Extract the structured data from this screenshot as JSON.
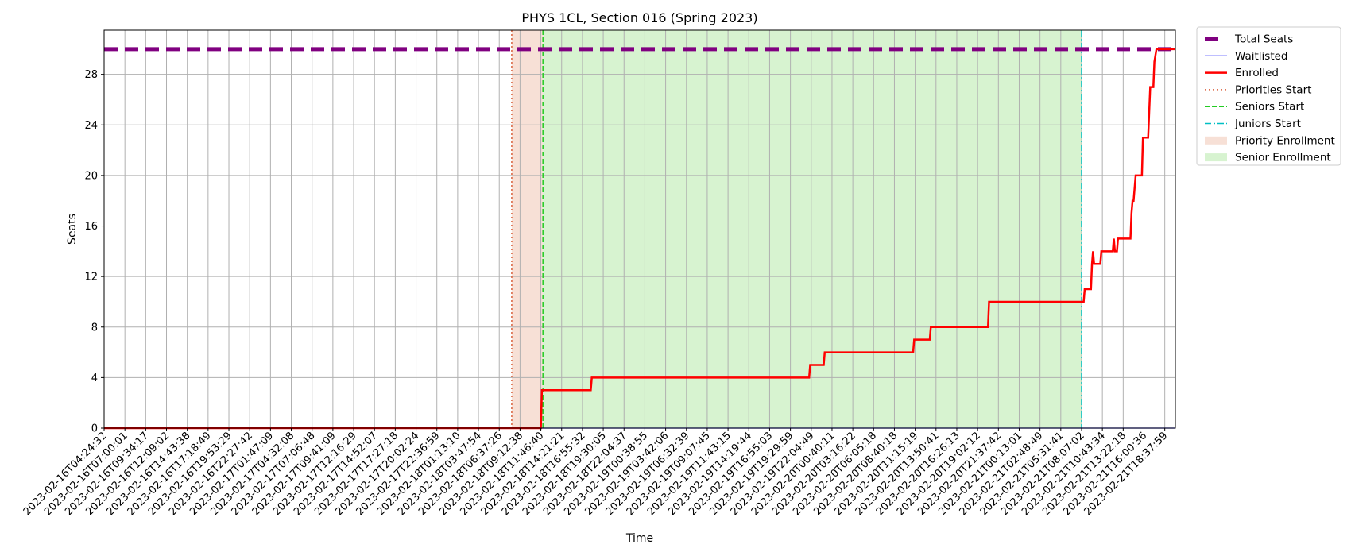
{
  "chart_data": {
    "type": "line",
    "title": "PHYS 1CL, Section 016 (Spring 2023)",
    "xlabel": "Time",
    "ylabel": "Seats",
    "ylim": [
      0,
      31.5
    ],
    "yticks": [
      0,
      4,
      8,
      12,
      16,
      20,
      24,
      28
    ],
    "grid": true,
    "legend_position": "outside-top-right",
    "x_ticks": [
      "2023-02-16T04:24:32",
      "2023-02-16T07:00:01",
      "2023-02-16T09:34:17",
      "2023-02-16T12:09:02",
      "2023-02-16T14:43:38",
      "2023-02-16T17:18:49",
      "2023-02-16T19:53:29",
      "2023-02-16T22:27:42",
      "2023-02-17T01:47:09",
      "2023-02-17T04:32:08",
      "2023-02-17T07:06:48",
      "2023-02-17T09:41:09",
      "2023-02-17T12:16:29",
      "2023-02-17T14:52:07",
      "2023-02-17T17:27:18",
      "2023-02-17T20:02:24",
      "2023-02-17T22:36:59",
      "2023-02-18T01:13:10",
      "2023-02-18T03:47:54",
      "2023-02-18T06:37:26",
      "2023-02-18T09:12:38",
      "2023-02-18T11:46:40",
      "2023-02-18T14:21:21",
      "2023-02-18T16:55:32",
      "2023-02-18T19:30:05",
      "2023-02-18T22:04:37",
      "2023-02-19T00:38:55",
      "2023-02-19T03:42:06",
      "2023-02-19T06:32:39",
      "2023-02-19T09:07:45",
      "2023-02-19T11:43:15",
      "2023-02-19T14:19:44",
      "2023-02-19T16:55:03",
      "2023-02-19T19:29:59",
      "2023-02-19T22:04:49",
      "2023-02-20T00:40:11",
      "2023-02-20T03:16:22",
      "2023-02-20T06:05:18",
      "2023-02-20T08:40:18",
      "2023-02-20T11:15:19",
      "2023-02-20T13:50:41",
      "2023-02-20T16:26:13",
      "2023-02-20T19:02:12",
      "2023-02-20T21:37:42",
      "2023-02-21T00:13:01",
      "2023-02-21T02:48:49",
      "2023-02-21T05:31:41",
      "2023-02-21T08:07:02",
      "2023-02-21T10:43:34",
      "2023-02-21T13:22:18",
      "2023-02-21T16:00:36",
      "2023-02-21T18:37:59"
    ],
    "x_index_range": [
      0,
      51.5
    ],
    "series": [
      {
        "name": "Total Seats",
        "color": "#800080",
        "style": "dashed-thick",
        "points": [
          [
            0,
            30
          ],
          [
            51.5,
            30
          ]
        ]
      },
      {
        "name": "Waitlisted",
        "color": "#0000ff",
        "style": "solid-thin",
        "points": [
          [
            0,
            0
          ],
          [
            51.5,
            0
          ]
        ]
      },
      {
        "name": "Enrolled",
        "color": "#ff0000",
        "style": "solid",
        "points": [
          [
            0,
            0
          ],
          [
            21.0,
            0
          ],
          [
            21.05,
            3
          ],
          [
            23.4,
            3
          ],
          [
            23.45,
            4
          ],
          [
            33.9,
            4
          ],
          [
            33.95,
            5
          ],
          [
            34.6,
            5
          ],
          [
            34.65,
            6
          ],
          [
            38.9,
            6
          ],
          [
            38.95,
            7
          ],
          [
            39.7,
            7
          ],
          [
            39.75,
            8
          ],
          [
            42.5,
            8
          ],
          [
            42.55,
            10
          ],
          [
            47.1,
            10
          ],
          [
            47.15,
            11
          ],
          [
            47.45,
            11
          ],
          [
            47.5,
            13
          ],
          [
            47.55,
            14
          ],
          [
            47.6,
            13
          ],
          [
            47.9,
            13
          ],
          [
            47.95,
            14
          ],
          [
            48.5,
            14
          ],
          [
            48.55,
            15
          ],
          [
            48.6,
            14
          ],
          [
            48.7,
            14
          ],
          [
            48.75,
            15
          ],
          [
            49.35,
            15
          ],
          [
            49.4,
            17
          ],
          [
            49.45,
            18
          ],
          [
            49.5,
            18
          ],
          [
            49.55,
            19
          ],
          [
            49.6,
            20
          ],
          [
            49.9,
            20
          ],
          [
            49.95,
            23
          ],
          [
            50.2,
            23
          ],
          [
            50.25,
            25
          ],
          [
            50.3,
            27
          ],
          [
            50.45,
            27
          ],
          [
            50.5,
            29
          ],
          [
            50.6,
            30
          ],
          [
            51.5,
            30
          ]
        ]
      }
    ],
    "vertical_lines": [
      {
        "name": "Priorities Start",
        "x": 19.6,
        "color": "#d95f3b",
        "style": "dotted"
      },
      {
        "name": "Seniors Start",
        "x": 21.1,
        "color": "#22cc22",
        "style": "dashed"
      },
      {
        "name": "Juniors Start",
        "x": 47.0,
        "color": "#00bfc4",
        "style": "dashdot"
      }
    ],
    "shaded_regions": [
      {
        "name": "Priority Enrollment",
        "x_start": 19.6,
        "x_end": 21.1,
        "color": "#f4d6c8"
      },
      {
        "name": "Senior Enrollment",
        "x_start": 21.1,
        "x_end": 47.0,
        "color": "#c9efc0"
      }
    ],
    "legend": [
      "Total Seats",
      "Waitlisted",
      "Enrolled",
      "Priorities Start",
      "Seniors Start",
      "Juniors Start",
      "Priority Enrollment",
      "Senior Enrollment"
    ]
  }
}
